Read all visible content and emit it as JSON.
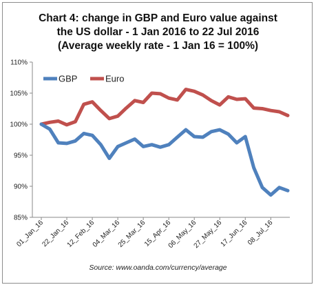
{
  "chart_data": {
    "type": "line",
    "title_lines": [
      "Chart 4: change in GBP and Euro value against",
      "the US dollar - 1 Jan 2016 to 22 Jul 2016",
      "(Average weekly rate - 1 Jan 16 = 100%)"
    ],
    "source": "Source: www.oanda.com/currency/average",
    "x_tick_labels": [
      "01_Jan_16",
      "22_Jan_16",
      "12_Feb_16",
      "04_Mar_16",
      "25_Mar_16",
      "15_Apr_16",
      "06_May_16",
      "27_May_16",
      "17_Jun_16",
      "08_Jul_16"
    ],
    "y_ticks": [
      85,
      90,
      95,
      100,
      105,
      110
    ],
    "y_tick_labels": [
      "85%",
      "90%",
      "95%",
      "100%",
      "105%",
      "110%"
    ],
    "ylim": [
      85,
      110
    ],
    "grid": false,
    "legend_position": "top-left",
    "series": [
      {
        "name": "GBP",
        "color": "#4f81bd",
        "values": [
          100,
          99.2,
          97,
          96.9,
          97.3,
          98.5,
          98.2,
          96.7,
          94.5,
          96.4,
          97,
          97.6,
          96.4,
          96.7,
          96.3,
          96.7,
          97.9,
          99.1,
          98,
          97.9,
          98.8,
          99.1,
          98.4,
          97,
          98,
          93,
          89.8,
          88.6,
          89.8,
          89.3
        ]
      },
      {
        "name": "Euro",
        "color": "#c0504d",
        "values": [
          100,
          100.3,
          100.5,
          99.9,
          100.4,
          103.2,
          103.6,
          102.2,
          100.9,
          101.3,
          102.6,
          103.8,
          103.5,
          105,
          104.9,
          104.2,
          103.9,
          105.6,
          105.3,
          104.7,
          103.8,
          103.1,
          104.4,
          104,
          104.1,
          102.6,
          102.5,
          102.2,
          102,
          101.4
        ]
      }
    ]
  }
}
